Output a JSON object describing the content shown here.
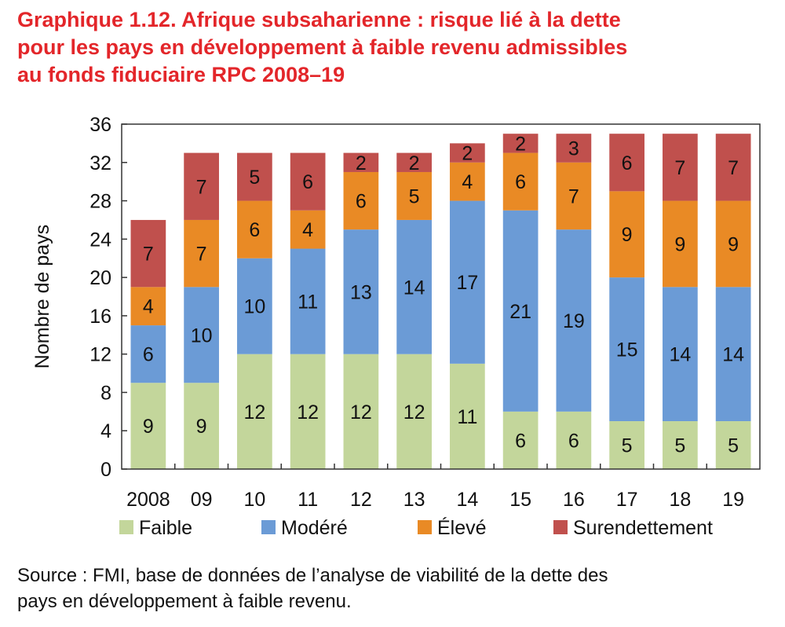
{
  "title_lines": [
    "Graphique 1.12.  Afrique subsaharienne : risque lié à la dette",
    "pour les pays en développement à faible revenu admissibles",
    "au fonds fiduciaire RPC 2008–19"
  ],
  "source_lines": [
    "Source : FMI, base de données de l’analyse de viabilité de la dette des",
    "pays en développement à faible revenu."
  ],
  "chart_data": {
    "type": "bar",
    "stacked": true,
    "categories": [
      "2008",
      "09",
      "10",
      "11",
      "12",
      "13",
      "14",
      "15",
      "16",
      "17",
      "18",
      "19"
    ],
    "series": [
      {
        "name": "Faible",
        "color": "#c3d69b",
        "values": [
          9,
          9,
          12,
          12,
          12,
          12,
          11,
          6,
          6,
          5,
          5,
          5
        ]
      },
      {
        "name": "Modéré",
        "color": "#6b9bd6",
        "values": [
          6,
          10,
          10,
          11,
          13,
          14,
          17,
          21,
          19,
          15,
          14,
          14
        ]
      },
      {
        "name": "Élevé",
        "color": "#e98a25",
        "values": [
          4,
          7,
          6,
          4,
          6,
          5,
          4,
          6,
          7,
          9,
          9,
          9
        ]
      },
      {
        "name": "Surendettement",
        "color": "#c0504d",
        "values": [
          7,
          7,
          5,
          6,
          2,
          2,
          2,
          2,
          3,
          6,
          7,
          7
        ]
      }
    ],
    "ylabel": "Nombre de pays",
    "xlabel": "",
    "ylim": [
      0,
      36
    ],
    "yticks": [
      0,
      4,
      8,
      12,
      16,
      20,
      24,
      28,
      32,
      36
    ],
    "grid": false,
    "legend_position": "bottom"
  }
}
